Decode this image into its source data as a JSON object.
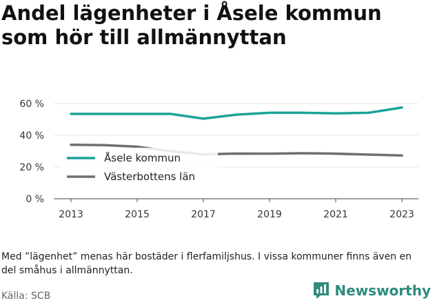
{
  "title": "Andel lägenheter i Åsele kommun som hör till allmännyttan",
  "note": "Med ”lägenhet” menas här bostäder i flerfamiljshus. I vissa kommuner finns även en del småhus i allmännyttan.",
  "source": "Källa: SCB",
  "brand": "Newsworthy",
  "brand_icon": "bar-chart-speech-icon",
  "chart_data": {
    "type": "line",
    "x": [
      2013,
      2014,
      2015,
      2016,
      2017,
      2018,
      2019,
      2020,
      2021,
      2022,
      2023
    ],
    "series": [
      {
        "name": "Åsele kommun",
        "color": "#1aa399",
        "values": [
          53.5,
          53.5,
          53.5,
          53.5,
          50.5,
          53,
          54.2,
          54.2,
          53.8,
          54.2,
          57.5
        ]
      },
      {
        "name": "Västerbottens län",
        "color": "#6e6e73",
        "values": [
          34,
          33.8,
          32.8,
          30,
          28,
          28.5,
          28.4,
          28.7,
          28.4,
          27.8,
          27.3
        ]
      }
    ],
    "yticks": [
      "0 %",
      "20 %",
      "40 %",
      "60 %"
    ],
    "ytick_values": [
      0,
      20,
      40,
      60
    ],
    "xticks": [
      "2013",
      "2015",
      "2017",
      "2019",
      "2021",
      "2023"
    ],
    "xtick_values": [
      2013,
      2015,
      2017,
      2019,
      2021,
      2023
    ],
    "ylim": [
      0,
      60
    ],
    "xlim": [
      2013,
      2023
    ],
    "grid": "horizontal",
    "legend": "bottom-left"
  }
}
